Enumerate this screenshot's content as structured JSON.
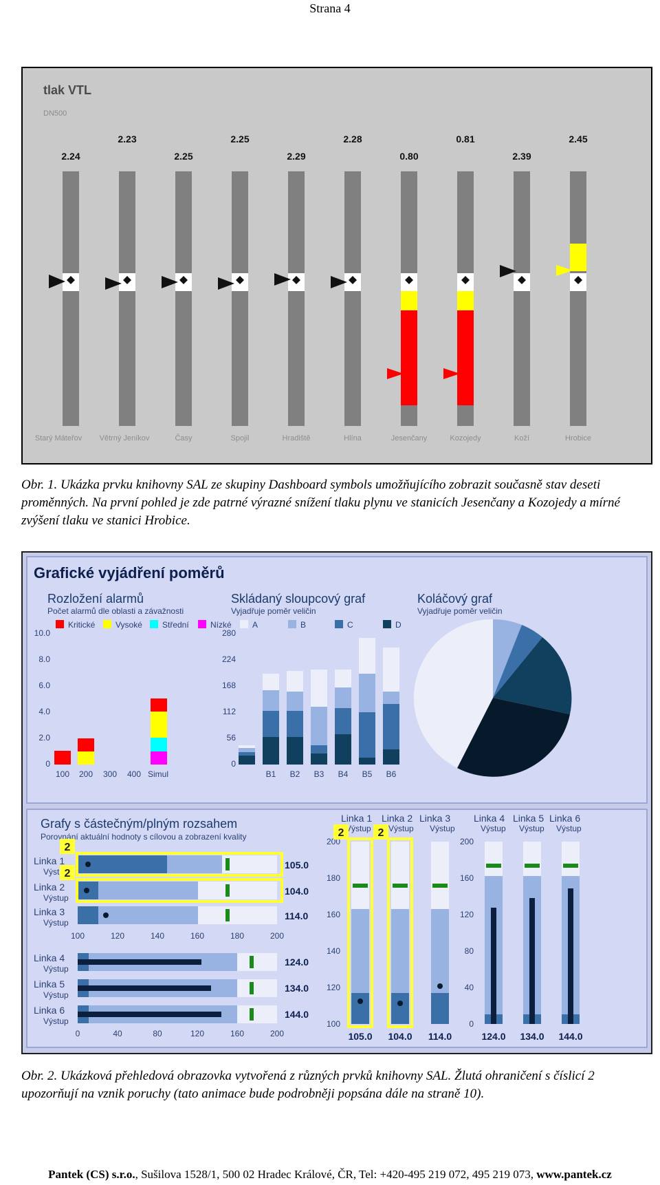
{
  "page_header": "Strana 4",
  "fig1": {
    "title": "tlak VTL",
    "subtitle": "DN500",
    "values": [
      "2.24",
      "2.23",
      "2.25",
      "2.25",
      "2.29",
      "2.28",
      "0.80",
      "0.81",
      "2.39",
      "2.45"
    ],
    "stations": [
      "Starý Máteřov",
      "Větrný Jeníkov",
      "Časy",
      "Spojil",
      "Hradiště",
      "Hlína",
      "Jesenčany",
      "Kozojedy",
      "Koží",
      "Hrobice"
    ],
    "colors": {
      "track": "#808080",
      "background": "#c9c9c9",
      "alarm_high": "#ffff00",
      "alarm_critical": "#ff0000",
      "marker": "#ffffff"
    }
  },
  "caption1": "Obr. 1. Ukázka prvku knihovny SAL ze skupiny Dashboard symbols umožňujícího zobrazit současně stav deseti proměnných. Na první pohled je zde patrné výrazné snížení tlaku plynu ve stanicích Jesenčany a Kozojedy a mírné zvýšení tlaku ve stanici Hrobice.",
  "fig2": {
    "top_title": "Grafické vyjádření poměrů",
    "alarm_chart": {
      "title": "Rozložení alarmů",
      "subtitle": "Počet alarmů dle oblasti a závažnosti",
      "legend": [
        "Kritické",
        "Vysoké",
        "Střední",
        "Nízké"
      ],
      "yticks": [
        "10.0",
        "8.0",
        "6.0",
        "4.0",
        "2.0",
        "0"
      ],
      "xticks": [
        "100",
        "200",
        "300",
        "400",
        "Simul"
      ]
    },
    "stack_chart": {
      "title": "Skládaný sloupcový graf",
      "subtitle": "Vyjadřuje poměr veličin",
      "legend": [
        "A",
        "B",
        "C",
        "D"
      ],
      "yticks": [
        "280",
        "224",
        "168",
        "112",
        "56",
        "0"
      ],
      "xticks": [
        "B1",
        "B2",
        "B3",
        "B4",
        "B5",
        "B6"
      ]
    },
    "pie_chart": {
      "title": "Koláčový graf",
      "subtitle": "Vyjadřuje poměr veličin"
    },
    "bullet_section": {
      "title": "Grafy s částečným/plným rozsahem",
      "subtitle": "Porovnání aktuální hodnoty s cílovou a zobrazení kvality",
      "badge": "2",
      "output_label": "Výstup",
      "top_lines": [
        "Linka 1",
        "Linka 2",
        "Linka 3"
      ],
      "top_values": [
        "105.0",
        "104.0",
        "114.0"
      ],
      "top_axis": [
        "100",
        "120",
        "140",
        "160",
        "180",
        "200"
      ],
      "bottom_lines": [
        "Linka 4",
        "Linka 5",
        "Linka 6"
      ],
      "bottom_values": [
        "124.0",
        "134.0",
        "144.0"
      ],
      "bottom_axis": [
        "0",
        "40",
        "80",
        "120",
        "160",
        "200"
      ],
      "vert_lines": [
        "Linka 1",
        "Linka 2",
        "Linka 3",
        "Linka 4",
        "Linka 5",
        "Linka 6"
      ],
      "vert_axis_left": [
        "200",
        "180",
        "160",
        "140",
        "120",
        "100"
      ],
      "vert_axis_right": [
        "200",
        "160",
        "120",
        "80",
        "40",
        "0"
      ],
      "vert_values": [
        "105.0",
        "104.0",
        "114.0",
        "124.0",
        "134.0",
        "144.0"
      ]
    },
    "colors": {
      "panel": "#d3d9f4",
      "title_dark": "#0d1f4e",
      "critical": "#ff0000",
      "high": "#ffff00",
      "medium": "#00ffff",
      "low": "#ff00ff",
      "A": "#eceef9",
      "B": "#98b2e2",
      "C": "#3b6fa8",
      "D": "#11405f",
      "warning": "#ffff33"
    }
  },
  "caption2": "Obr. 2. Ukázková přehledová obrazovka vytvořená z různých prvků knihovny SAL. Žlutá ohraničení s číslicí 2 upozorňují na vznik poruchy (tato animace bude podrobněji popsána dále na straně 10).",
  "footer": {
    "company": "Pantek (CS) s.r.o.",
    "address": ", Sušilova 1528/1, 500 02 Hradec Králové, ČR, Tel: +420-495 219 072, 495 219 073, ",
    "web": "www.pantek.cz"
  }
}
